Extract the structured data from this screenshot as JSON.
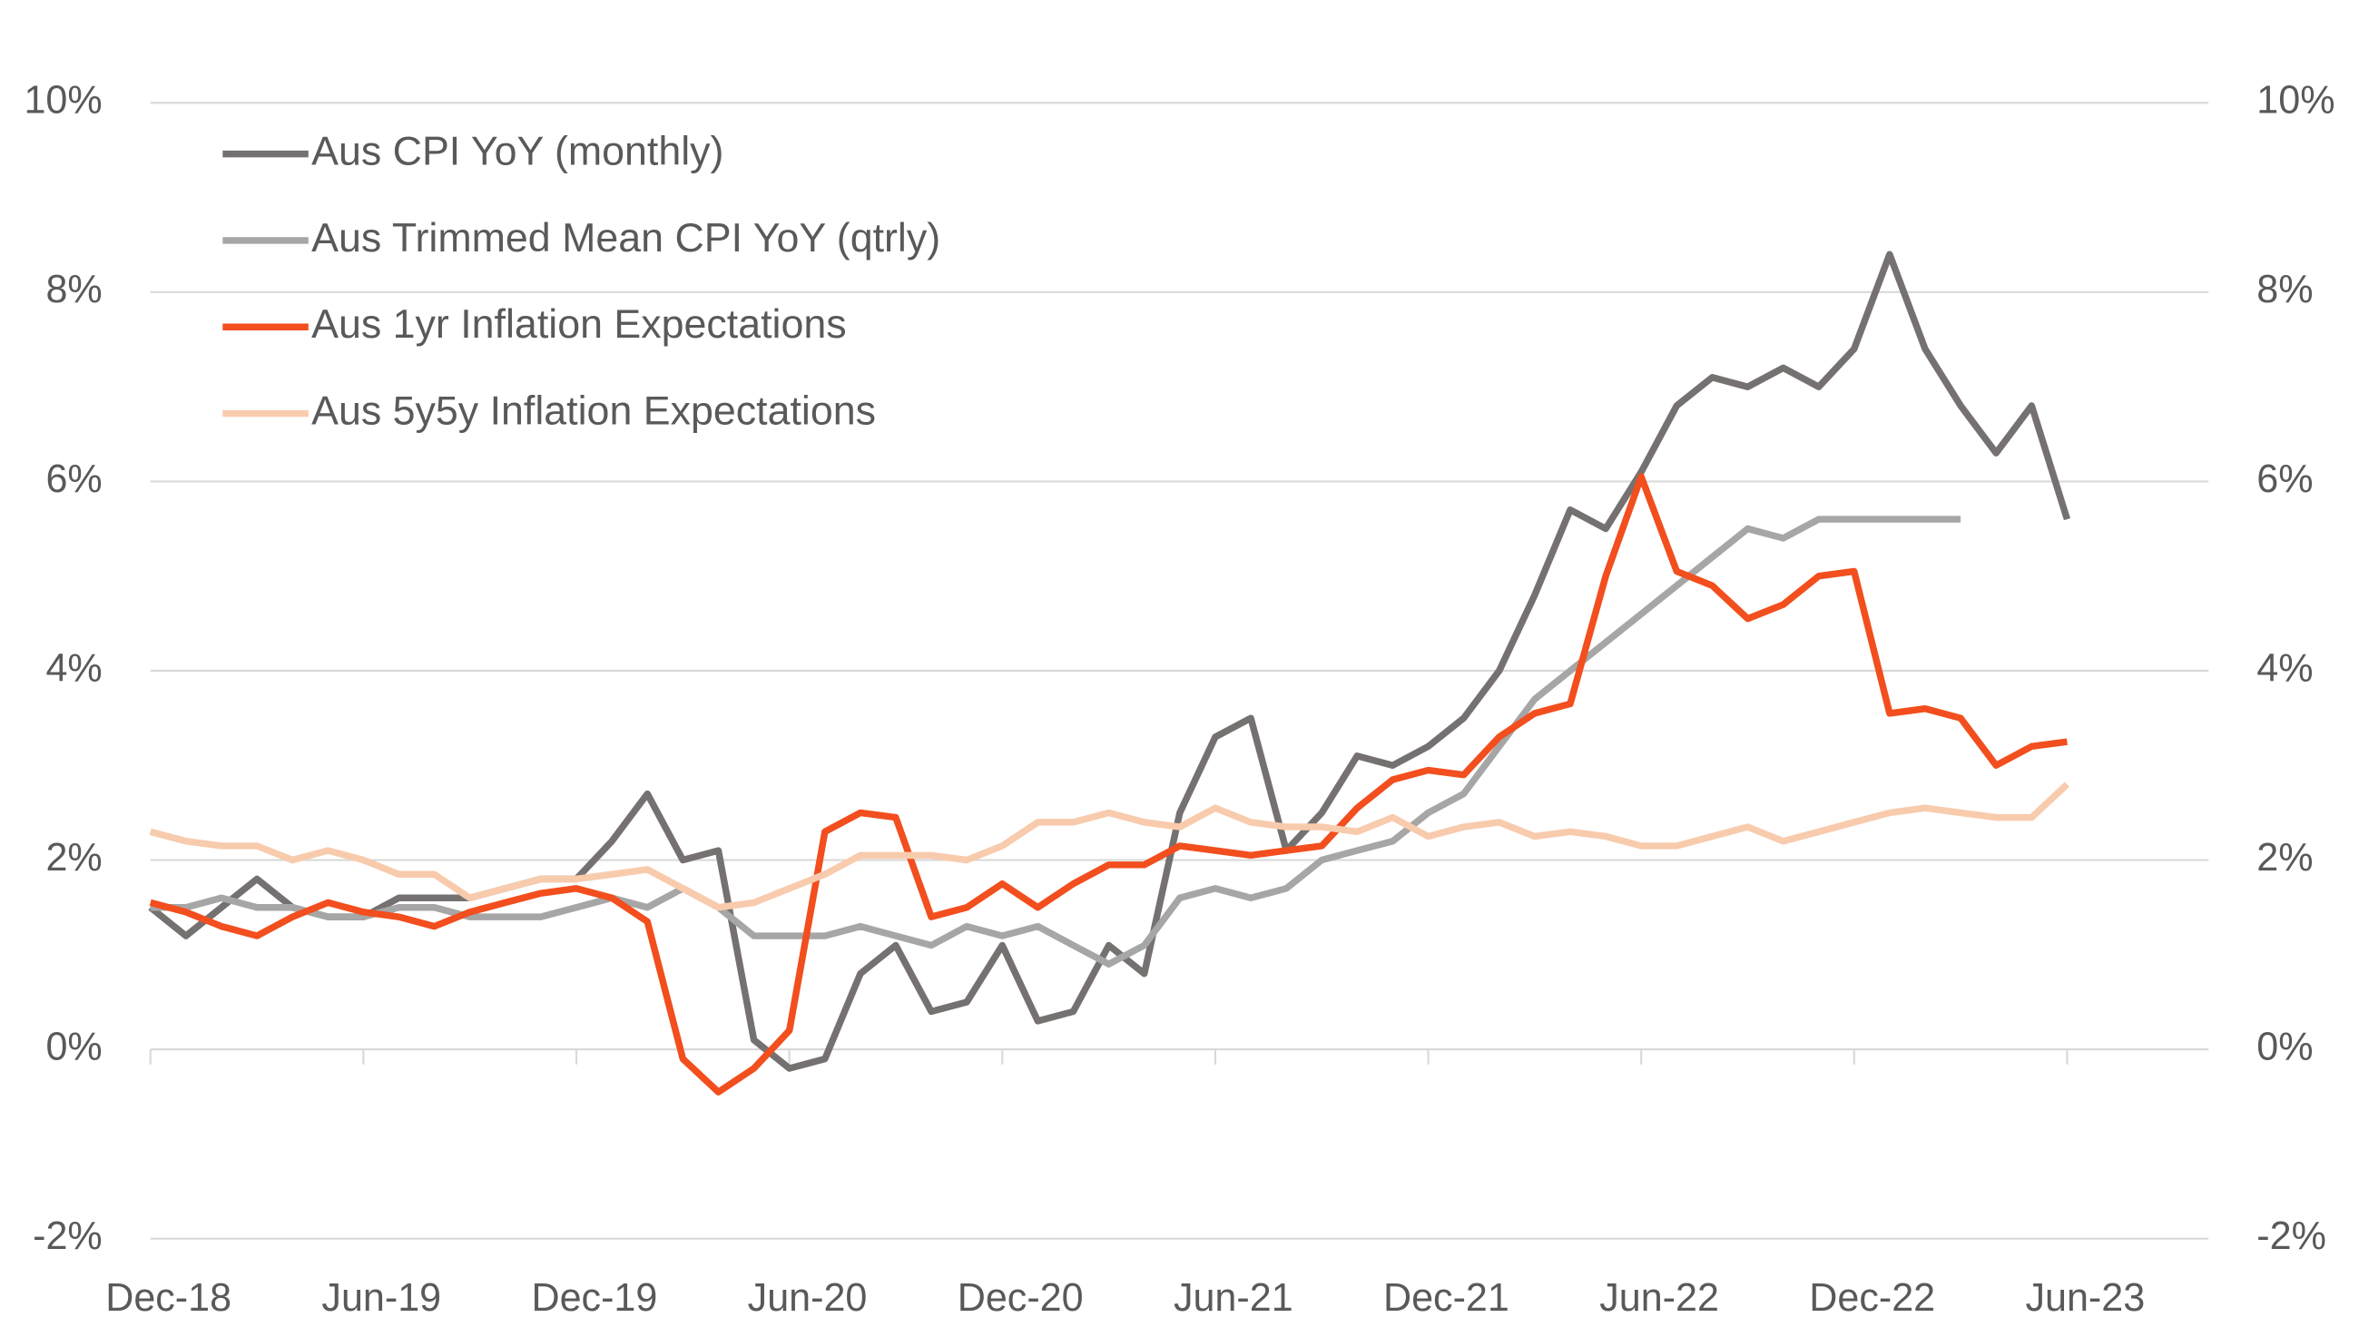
{
  "chart_data": {
    "type": "line",
    "categories": [
      "Dec-18",
      null,
      null,
      null,
      null,
      null,
      "Jun-19",
      null,
      null,
      null,
      null,
      null,
      "Dec-19",
      null,
      null,
      null,
      null,
      null,
      "Jun-20",
      null,
      null,
      null,
      null,
      null,
      "Dec-20",
      null,
      null,
      null,
      null,
      null,
      "Jun-21",
      null,
      null,
      null,
      null,
      null,
      "Dec-21",
      null,
      null,
      null,
      null,
      null,
      "Jun-22",
      null,
      null,
      null,
      null,
      null,
      "Dec-22",
      null,
      null,
      null,
      null,
      null,
      "Jun-23"
    ],
    "series": [
      {
        "name": "Aus CPI YoY (monthly)",
        "color": "#767171",
        "values": [
          1.5,
          1.2,
          1.5,
          1.8,
          1.5,
          1.4,
          1.4,
          1.6,
          1.6,
          1.6,
          1.7,
          1.8,
          1.8,
          2.2,
          2.7,
          2.0,
          2.1,
          0.1,
          -0.2,
          -0.1,
          0.8,
          1.1,
          0.4,
          0.5,
          1.1,
          0.3,
          0.4,
          1.1,
          0.8,
          2.5,
          3.3,
          3.5,
          2.1,
          2.5,
          3.1,
          3.0,
          3.2,
          3.5,
          4.0,
          4.8,
          5.7,
          5.5,
          6.1,
          6.8,
          7.1,
          7.0,
          7.2,
          7.0,
          7.4,
          8.4,
          7.4,
          6.8,
          6.3,
          6.8,
          5.6
        ]
      },
      {
        "name": "Aus Trimmed Mean CPI YoY (qtrly)",
        "color": "#a6a6a6",
        "values": [
          1.5,
          1.5,
          1.6,
          1.5,
          1.5,
          1.4,
          1.4,
          1.5,
          1.5,
          1.4,
          1.4,
          1.4,
          1.5,
          1.6,
          1.5,
          1.7,
          1.5,
          1.2,
          1.2,
          1.2,
          1.3,
          1.2,
          1.1,
          1.3,
          1.2,
          1.3,
          1.1,
          0.9,
          1.1,
          1.6,
          1.7,
          1.6,
          1.7,
          2.0,
          2.1,
          2.2,
          2.5,
          2.7,
          3.2,
          3.7,
          4.0,
          4.3,
          4.6,
          4.9,
          5.2,
          5.5,
          5.4,
          5.6,
          5.6,
          5.6,
          5.6,
          5.6,
          null,
          null,
          null
        ]
      },
      {
        "name": "Aus 1yr Inflation Expectations",
        "color": "#f24e1e",
        "values": [
          1.55,
          1.45,
          1.3,
          1.2,
          1.4,
          1.55,
          1.45,
          1.4,
          1.3,
          1.45,
          1.55,
          1.65,
          1.7,
          1.6,
          1.35,
          -0.1,
          -0.45,
          -0.2,
          0.2,
          2.3,
          2.5,
          2.45,
          1.4,
          1.5,
          1.75,
          1.5,
          1.75,
          1.95,
          1.95,
          2.15,
          2.1,
          2.05,
          2.1,
          2.15,
          2.55,
          2.85,
          2.95,
          2.9,
          3.3,
          3.55,
          3.65,
          5.0,
          6.05,
          5.05,
          4.9,
          4.55,
          4.7,
          5.0,
          5.05,
          3.55,
          3.6,
          3.5,
          3.0,
          3.2,
          3.25
        ]
      },
      {
        "name": "Aus 5y5y Inflation Expectations",
        "color": "#f8cbad",
        "values": [
          2.3,
          2.2,
          2.15,
          2.15,
          2.0,
          2.1,
          2.0,
          1.85,
          1.85,
          1.6,
          1.7,
          1.8,
          1.8,
          1.85,
          1.9,
          1.7,
          1.5,
          1.55,
          1.7,
          1.85,
          2.05,
          2.05,
          2.05,
          2.0,
          2.15,
          2.4,
          2.4,
          2.5,
          2.4,
          2.35,
          2.55,
          2.4,
          2.35,
          2.35,
          2.3,
          2.45,
          2.25,
          2.35,
          2.4,
          2.25,
          2.3,
          2.25,
          2.15,
          2.15,
          2.25,
          2.35,
          2.2,
          2.3,
          2.4,
          2.5,
          2.55,
          2.5,
          2.45,
          2.45,
          2.8
        ]
      }
    ],
    "ylim": [
      -2,
      10
    ],
    "yticks": [
      {
        "value": -2,
        "label": "-2%"
      },
      {
        "value": 0,
        "label": "0%"
      },
      {
        "value": 2,
        "label": "2%"
      },
      {
        "value": 4,
        "label": "4%"
      },
      {
        "value": 6,
        "label": "6%"
      },
      {
        "value": 8,
        "label": "8%"
      },
      {
        "value": 10,
        "label": "10%"
      }
    ],
    "y2lim": [
      -2,
      10
    ],
    "y2ticks": [
      {
        "value": -2,
        "label": "-2%"
      },
      {
        "value": 0,
        "label": "0%"
      },
      {
        "value": 2,
        "label": "2%"
      },
      {
        "value": 4,
        "label": "4%"
      },
      {
        "value": 6,
        "label": "6%"
      },
      {
        "value": 8,
        "label": "8%"
      },
      {
        "value": 10,
        "label": "10%"
      }
    ],
    "grid": true,
    "legend": "upper left"
  }
}
